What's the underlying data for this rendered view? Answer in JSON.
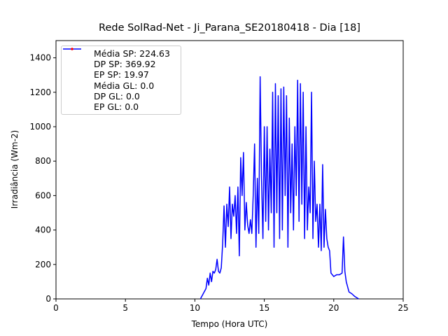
{
  "chart_data": {
    "type": "line",
    "title": "Rede SolRad-Net - Ji_Parana_SE20180418 - Dia [18]",
    "x_label": "Tempo (Hora UTC)",
    "y_label": "Irradiância (Wm-2)",
    "xlim": [
      0,
      25
    ],
    "xticks": [
      0,
      5,
      10,
      15,
      20,
      25
    ],
    "ylim": [
      0,
      1500
    ],
    "yticks": [
      0,
      200,
      400,
      600,
      800,
      1000,
      1200,
      1400
    ],
    "grid": false,
    "legend": "upper left",
    "series": [
      {
        "name": "Média SP: 224.63\nDP SP: 369.92\nEP SP: 19.97",
        "color": "#0000ff",
        "marker": "line",
        "x": [
          10.4,
          10.6,
          10.8,
          10.9,
          11.0,
          11.1,
          11.2,
          11.3,
          11.4,
          11.5,
          11.6,
          11.7,
          11.8,
          11.9,
          12.0,
          12.1,
          12.2,
          12.3,
          12.4,
          12.5,
          12.6,
          12.7,
          12.8,
          12.9,
          13.0,
          13.1,
          13.2,
          13.3,
          13.4,
          13.5,
          13.6,
          13.7,
          13.8,
          13.9,
          14.0,
          14.1,
          14.2,
          14.3,
          14.4,
          14.5,
          14.6,
          14.7,
          14.8,
          14.9,
          15.0,
          15.1,
          15.2,
          15.3,
          15.4,
          15.5,
          15.6,
          15.7,
          15.8,
          15.9,
          16.0,
          16.1,
          16.2,
          16.3,
          16.4,
          16.5,
          16.6,
          16.7,
          16.8,
          16.9,
          17.0,
          17.1,
          17.2,
          17.3,
          17.4,
          17.5,
          17.6,
          17.7,
          17.8,
          17.9,
          18.0,
          18.1,
          18.2,
          18.3,
          18.4,
          18.5,
          18.6,
          18.7,
          18.8,
          18.9,
          19.0,
          19.1,
          19.2,
          19.3,
          19.4,
          19.5,
          19.6,
          19.7,
          19.8,
          19.9,
          20.0,
          20.2,
          20.4,
          20.6,
          20.7,
          20.8,
          20.9,
          21.0,
          21.1,
          21.3,
          21.5,
          21.8
        ],
        "values": [
          0,
          30,
          60,
          120,
          80,
          150,
          100,
          160,
          150,
          170,
          230,
          160,
          150,
          180,
          320,
          540,
          300,
          550,
          420,
          650,
          350,
          550,
          480,
          600,
          380,
          650,
          250,
          820,
          600,
          850,
          400,
          560,
          430,
          380,
          460,
          380,
          600,
          900,
          300,
          700,
          380,
          1290,
          700,
          350,
          1000,
          450,
          1000,
          400,
          870,
          500,
          1200,
          300,
          1250,
          500,
          1180,
          350,
          1220,
          400,
          1230,
          600,
          1180,
          300,
          1050,
          500,
          900,
          400,
          1000,
          600,
          1270,
          450,
          1250,
          550,
          1200,
          350,
          1000,
          400,
          650,
          500,
          1200,
          350,
          800,
          450,
          550,
          300,
          550,
          280,
          780,
          300,
          520,
          350,
          300,
          280,
          150,
          140,
          130,
          140,
          140,
          150,
          360,
          160,
          100,
          70,
          40,
          30,
          15,
          0
        ]
      },
      {
        "name": "Média GL: 0.0\nDP GL: 0.0\nEP GL: 0.0",
        "color": "#ff0000",
        "marker": "dot",
        "x": [],
        "values": []
      }
    ]
  }
}
